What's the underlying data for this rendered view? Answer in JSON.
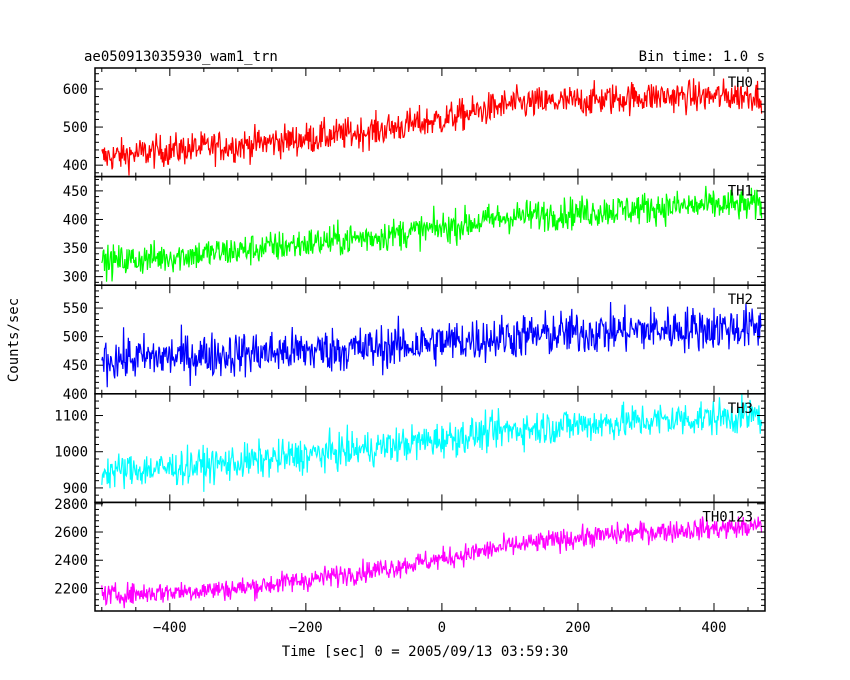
{
  "chart_data": {
    "type": "line",
    "title": "ae050913035930_wam1_trn",
    "subtitle": "Bin time: 1.0 s",
    "xlabel": "Time [sec] 0 = 2005/09/13 03:59:30",
    "ylabel": "Counts/sec",
    "xlim": [
      -510,
      475
    ],
    "xticks": [
      -400,
      -200,
      0,
      200,
      400
    ],
    "series": [
      {
        "name": "TH0",
        "color": "#ff0000",
        "ylim": [
          370,
          655
        ],
        "yticks": [
          400,
          500,
          600
        ],
        "x": [
          -500,
          -400,
          -300,
          -200,
          -100,
          0,
          100,
          200,
          300,
          400,
          470
        ],
        "y": [
          420,
          440,
          452,
          470,
          490,
          520,
          560,
          568,
          580,
          580,
          585
        ],
        "noise": 30
      },
      {
        "name": "TH1",
        "color": "#00ff00",
        "ylim": [
          285,
          475
        ],
        "yticks": [
          300,
          350,
          400,
          450
        ],
        "x": [
          -500,
          -400,
          -300,
          -200,
          -100,
          0,
          100,
          200,
          300,
          400,
          470
        ],
        "y": [
          325,
          335,
          345,
          358,
          370,
          385,
          405,
          412,
          420,
          425,
          425
        ],
        "noise": 20
      },
      {
        "name": "TH2",
        "color": "#0000ff",
        "ylim": [
          400,
          590
        ],
        "yticks": [
          400,
          450,
          500,
          550
        ],
        "x": [
          -500,
          -400,
          -300,
          -200,
          -100,
          0,
          100,
          200,
          300,
          400,
          470
        ],
        "y": [
          460,
          465,
          470,
          475,
          480,
          490,
          500,
          507,
          512,
          515,
          515
        ],
        "noise": 28
      },
      {
        "name": "TH3",
        "color": "#00ffff",
        "ylim": [
          860,
          1160
        ],
        "yticks": [
          900,
          1000,
          1100
        ],
        "x": [
          -500,
          -400,
          -300,
          -200,
          -100,
          0,
          100,
          200,
          300,
          400,
          470
        ],
        "y": [
          945,
          955,
          970,
          990,
          1010,
          1035,
          1060,
          1075,
          1085,
          1095,
          1100
        ],
        "noise": 35
      },
      {
        "name": "TH0123",
        "color": "#ff00ff",
        "ylim": [
          2040,
          2810
        ],
        "yticks": [
          2200,
          2400,
          2600,
          2800
        ],
        "x": [
          -500,
          -400,
          -300,
          -200,
          -100,
          0,
          100,
          200,
          300,
          400,
          470
        ],
        "y": [
          2150,
          2175,
          2200,
          2260,
          2330,
          2410,
          2500,
          2560,
          2600,
          2625,
          2640
        ],
        "noise": 55
      }
    ]
  }
}
